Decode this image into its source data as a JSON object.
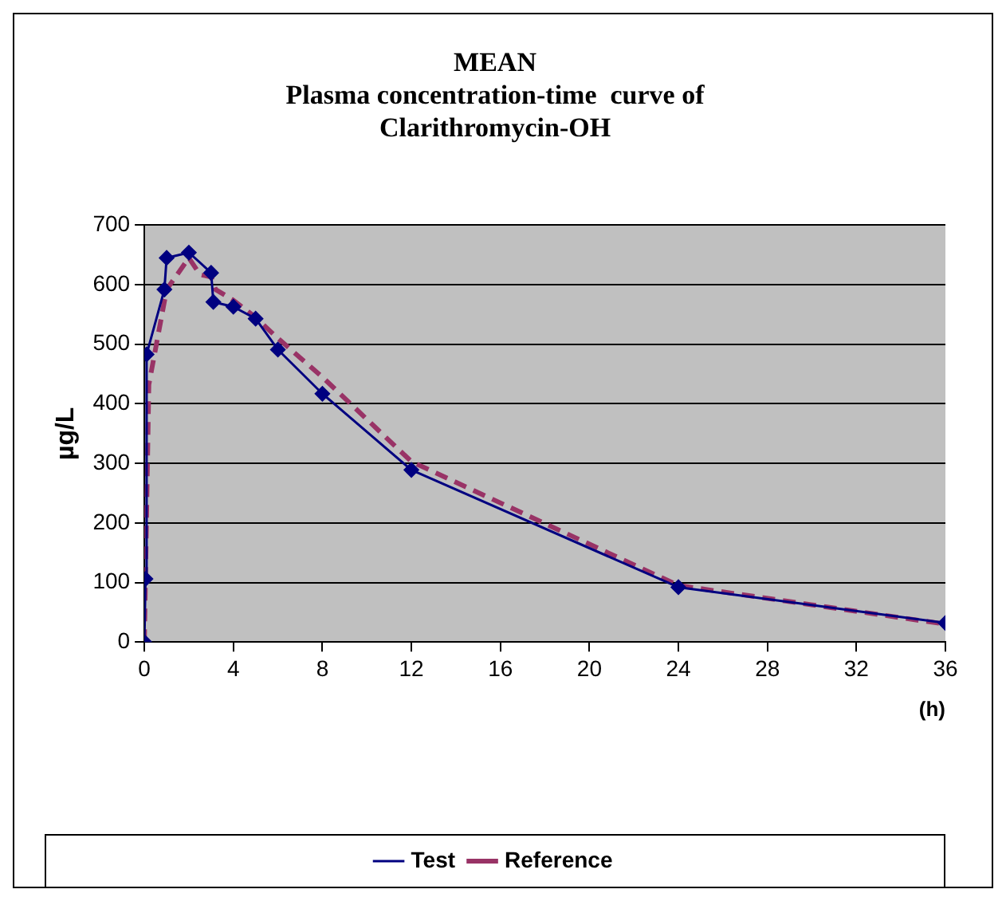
{
  "chart_data": {
    "type": "line",
    "title": "MEAN\nPlasma concentration-time  curve of\nClarithromycin-OH",
    "xlabel": "(h)",
    "ylabel": "µg/L",
    "xlim": [
      0,
      36
    ],
    "xticks": [
      0,
      4,
      8,
      12,
      16,
      20,
      24,
      28,
      32,
      36
    ],
    "ylim": [
      0,
      700
    ],
    "yticks": [
      0,
      100,
      200,
      300,
      400,
      500,
      600,
      700
    ],
    "grid": "y",
    "legend": "bottom",
    "series": [
      {
        "name": "Test",
        "color": "#000080",
        "marker": "diamond",
        "line_style": "solid",
        "x": [
          0,
          0.05,
          0.1,
          0.9,
          1,
          2,
          3,
          3.1,
          4,
          5,
          6,
          8,
          12,
          24,
          36
        ],
        "values": [
          0,
          106,
          483,
          592,
          645,
          654,
          620,
          571,
          563,
          543,
          491,
          417,
          289,
          92,
          32
        ]
      },
      {
        "name": "Reference",
        "color": "#993366",
        "marker": "none",
        "line_style": "dashed",
        "x": [
          0,
          0.2,
          1,
          2,
          2.5,
          3,
          3.2,
          4,
          5,
          6,
          8,
          12,
          24,
          36
        ],
        "values": [
          0,
          432,
          592,
          645,
          617,
          613,
          592,
          574,
          545,
          510,
          445,
          303,
          95,
          30
        ]
      }
    ]
  }
}
